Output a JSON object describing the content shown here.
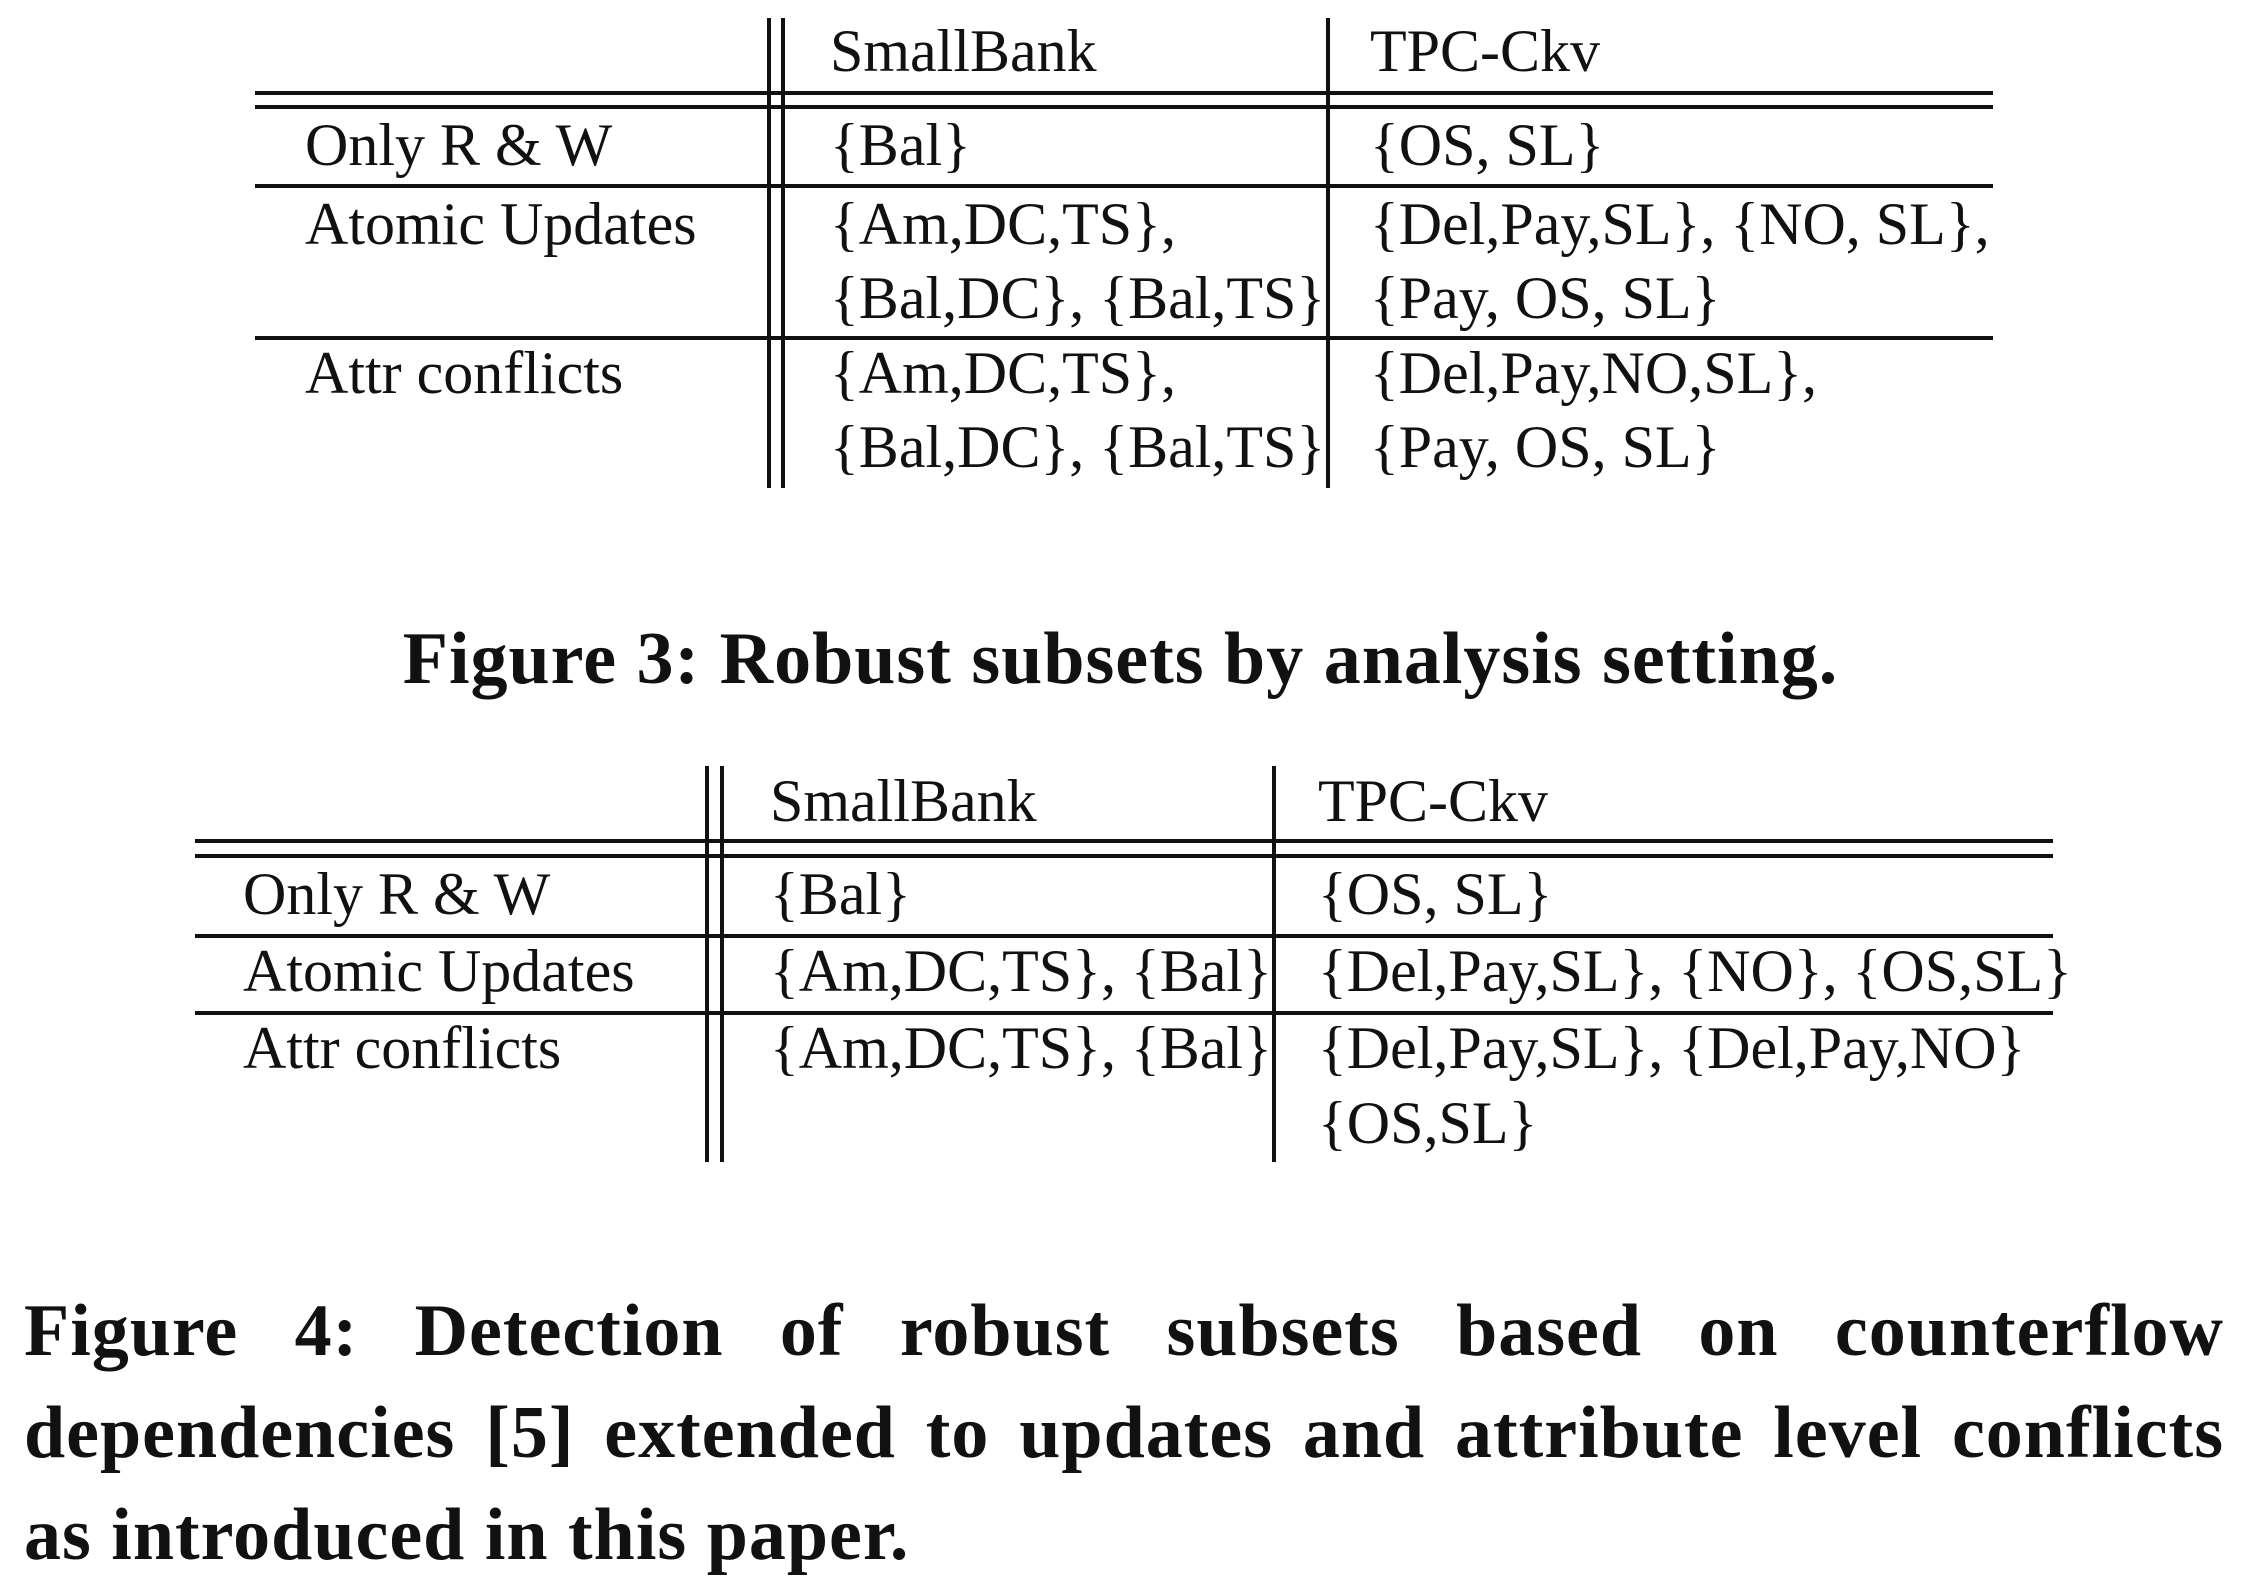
{
  "figure3": {
    "columns": [
      "",
      "SmallBank",
      "TPC-Ckv"
    ],
    "rows": [
      {
        "setting": "Only R & W",
        "smallbank": [
          "{Bal}"
        ],
        "tpcckv": [
          "{OS, SL}"
        ]
      },
      {
        "setting": "Atomic Updates",
        "smallbank": [
          "{Am,DC,TS},",
          "{Bal,DC}, {Bal,TS}"
        ],
        "tpcckv": [
          "{Del,Pay,SL}, {NO, SL},",
          "{Pay, OS, SL}"
        ]
      },
      {
        "setting": "Attr conflicts",
        "smallbank": [
          "{Am,DC,TS},",
          "{Bal,DC}, {Bal,TS}"
        ],
        "tpcckv": [
          "{Del,Pay,NO,SL},",
          "{Pay, OS, SL}"
        ]
      }
    ],
    "caption": "Figure 3: Robust subsets by analysis setting."
  },
  "figure4": {
    "columns": [
      "",
      "SmallBank",
      "TPC-Ckv"
    ],
    "rows": [
      {
        "setting": "Only R & W",
        "smallbank": [
          "{Bal}"
        ],
        "tpcckv": [
          "{OS, SL}"
        ]
      },
      {
        "setting": "Atomic Updates",
        "smallbank": [
          "{Am,DC,TS}, {Bal}"
        ],
        "tpcckv": [
          "{Del,Pay,SL}, {NO}, {OS,SL}"
        ]
      },
      {
        "setting": "Attr conflicts",
        "smallbank": [
          "{Am,DC,TS}, {Bal}"
        ],
        "tpcckv": [
          "{Del,Pay,SL}, {Del,Pay,NO}",
          "{OS,SL}"
        ]
      }
    ],
    "caption": "Figure 4: Detection of robust subsets based on counterflow dependencies [5] extended to updates and attribute level conflicts as introduced in this paper."
  }
}
